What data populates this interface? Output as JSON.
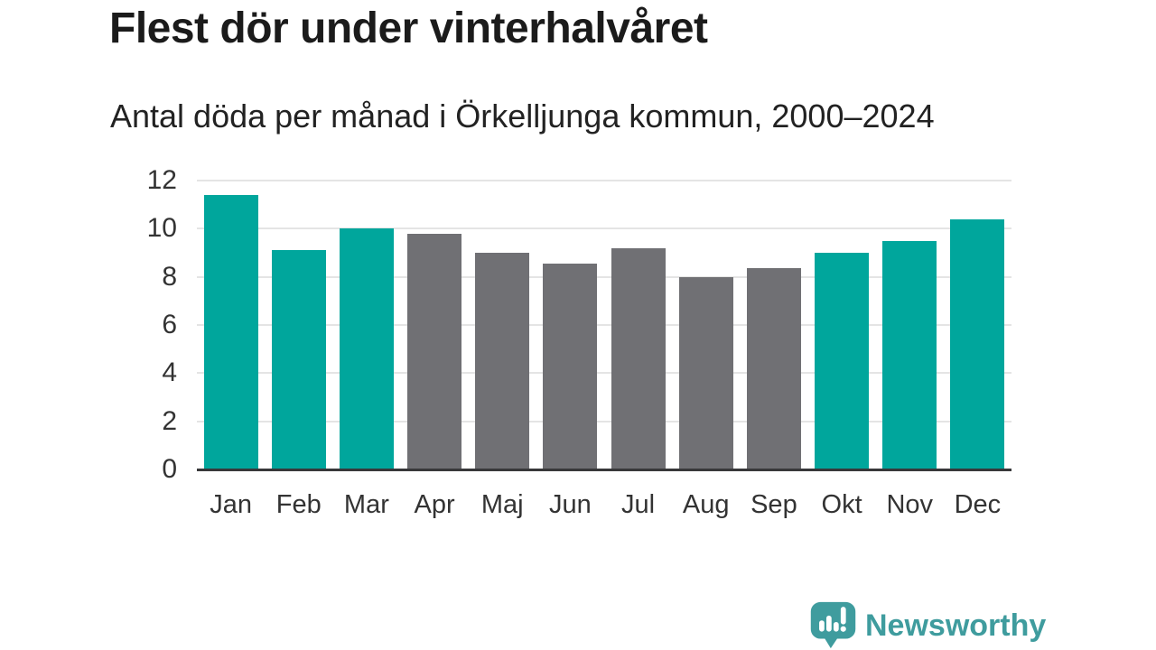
{
  "header": {
    "title": "Flest dör under vinterhalvåret",
    "subtitle": "Antal döda per månad i Örkelljunga kommun, 2000–2024"
  },
  "chart_data": {
    "type": "bar",
    "title": "Flest dör under vinterhalvåret",
    "subtitle": "Antal döda per månad i Örkelljunga kommun, 2000–2024",
    "categories": [
      "Jan",
      "Feb",
      "Mar",
      "Apr",
      "Maj",
      "Jun",
      "Jul",
      "Aug",
      "Sep",
      "Okt",
      "Nov",
      "Dec"
    ],
    "values": [
      11.4,
      9.1,
      10.0,
      9.8,
      9.0,
      8.55,
      9.2,
      8.0,
      8.35,
      9.0,
      9.5,
      10.4
    ],
    "bar_colors": [
      "#00a69c",
      "#00a69c",
      "#00a69c",
      "#707074",
      "#707074",
      "#707074",
      "#707074",
      "#707074",
      "#707074",
      "#00a69c",
      "#00a69c",
      "#00a69c"
    ],
    "highlight_color": "#00a69c",
    "muted_color": "#707074",
    "xlabel": "",
    "ylabel": "",
    "ylim": [
      0,
      12
    ],
    "yticks": [
      0,
      2,
      4,
      6,
      8,
      10,
      12
    ],
    "grid": "horizontal",
    "legend": "none",
    "gridline_color": "#e4e4e4",
    "axis_color": "#38383a"
  },
  "footer": {
    "brand": "Newsworthy",
    "logo_icon": "bar-chart-speech-bubble-icon",
    "brand_color": "#3f9c9e"
  }
}
